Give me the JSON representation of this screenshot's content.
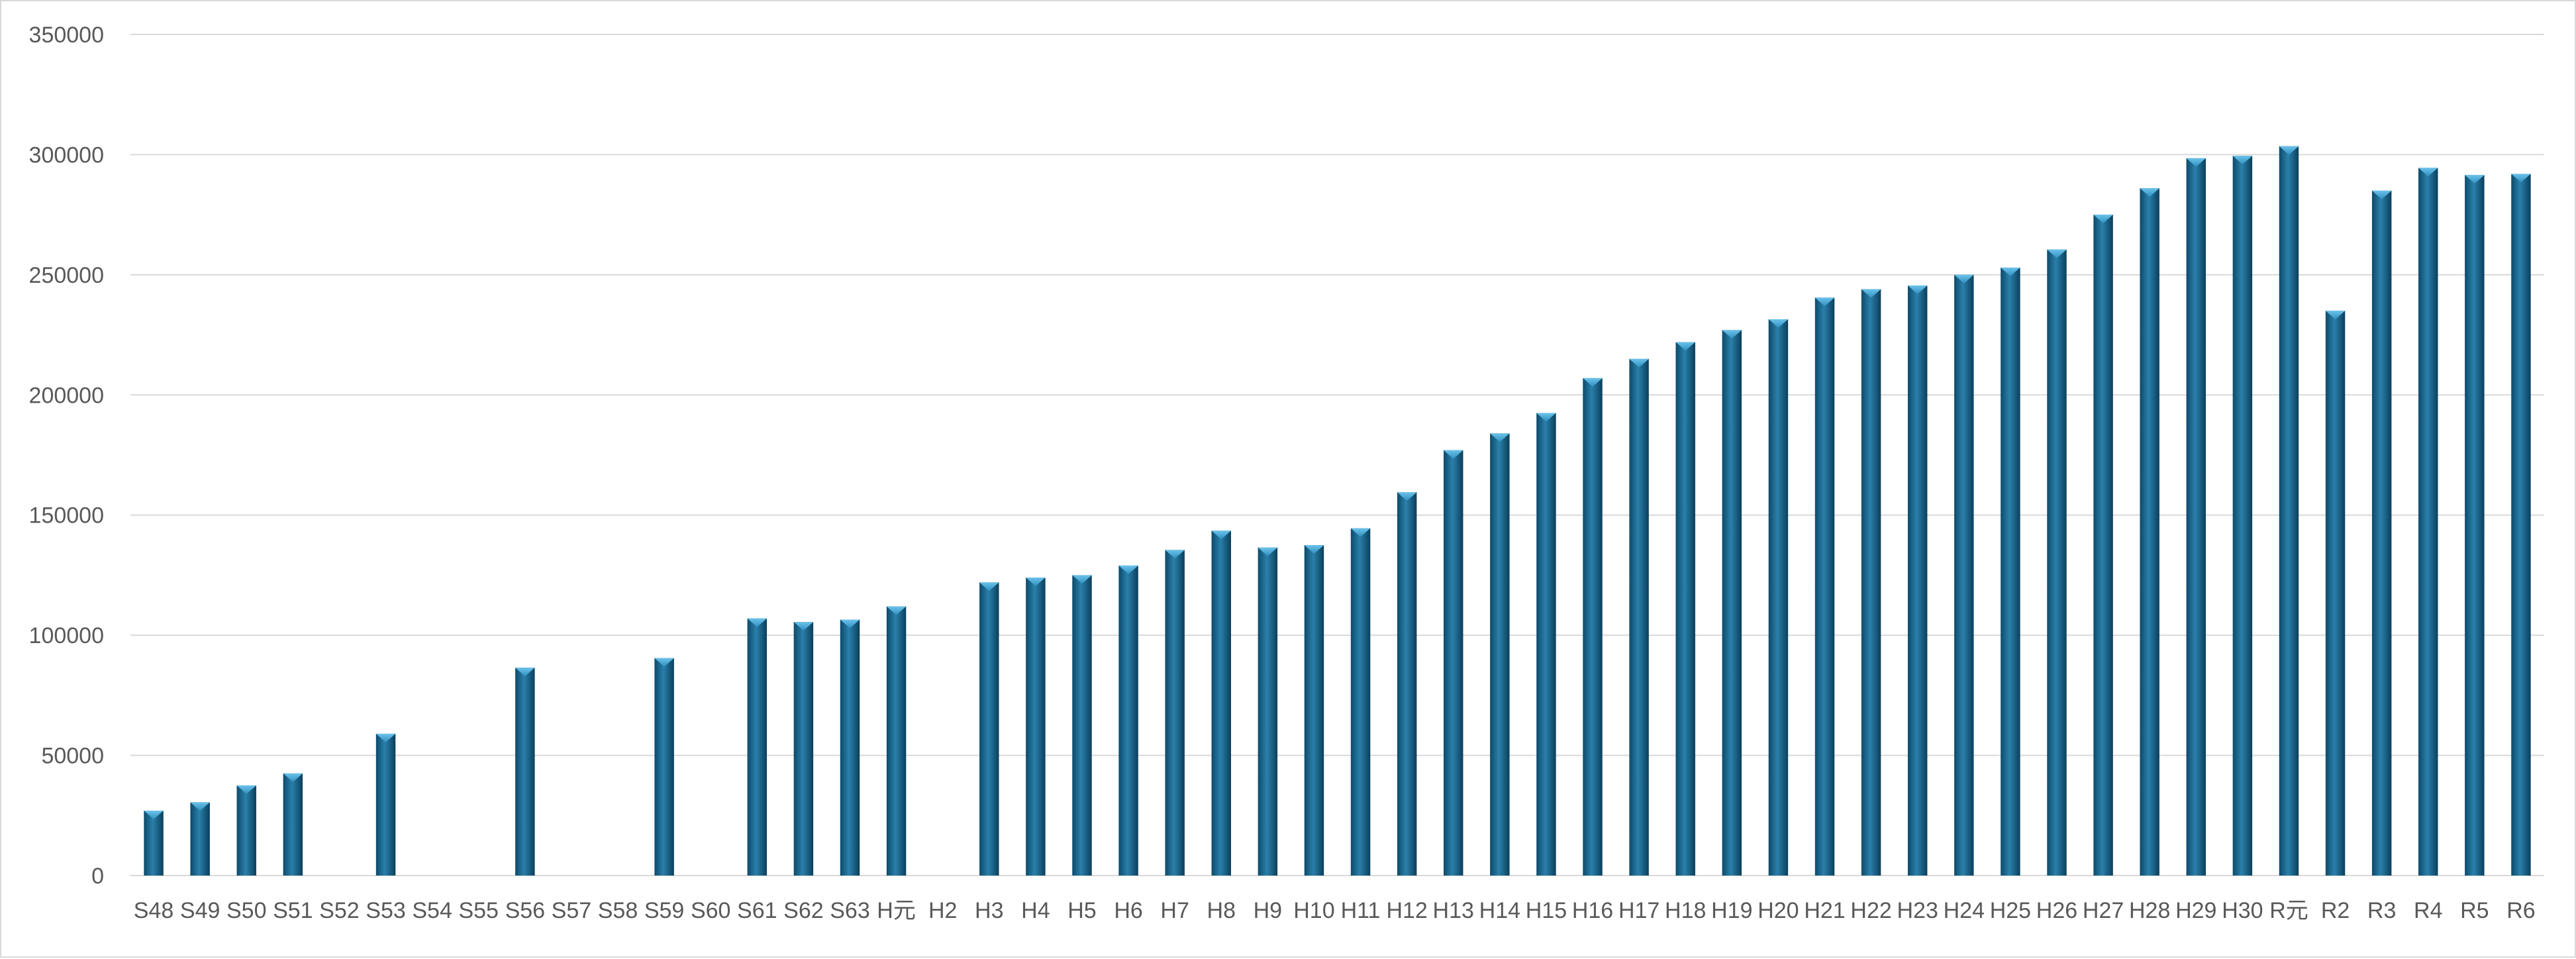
{
  "chart_data": {
    "type": "bar",
    "title": "",
    "xlabel": "",
    "ylabel": "",
    "ylim": [
      0,
      350000
    ],
    "yticks": [
      0,
      50000,
      100000,
      150000,
      200000,
      250000,
      300000,
      350000
    ],
    "ytick_labels": [
      "0",
      "50000",
      "100000",
      "150000",
      "200000",
      "250000",
      "300000",
      "350000"
    ],
    "grid": true,
    "legend": "none",
    "bar_color": "#1f6e95",
    "categories": [
      "S48",
      "S49",
      "S50",
      "S51",
      "S52",
      "S53",
      "S54",
      "S55",
      "S56",
      "S57",
      "S58",
      "S59",
      "S60",
      "S61",
      "S62",
      "S63",
      "H元",
      "H2",
      "H3",
      "H4",
      "H5",
      "H6",
      "H7",
      "H8",
      "H9",
      "H10",
      "H11",
      "H12",
      "H13",
      "H14",
      "H15",
      "H16",
      "H17",
      "H18",
      "H19",
      "H20",
      "H21",
      "H22",
      "H23",
      "H24",
      "H25",
      "H26",
      "H27",
      "H28",
      "H29",
      "H30",
      "R元",
      "R2",
      "R3",
      "R4",
      "R5",
      "R6"
    ],
    "values": [
      27000,
      30500,
      37500,
      42500,
      null,
      59000,
      null,
      null,
      86500,
      null,
      null,
      90500,
      null,
      107000,
      105500,
      106500,
      112000,
      null,
      122000,
      124000,
      125000,
      129000,
      135500,
      143500,
      136500,
      137500,
      144500,
      159500,
      177000,
      184000,
      192500,
      207000,
      215000,
      222000,
      227000,
      231500,
      240500,
      244000,
      245500,
      250000,
      253000,
      260500,
      275000,
      286000,
      298500,
      299500,
      303500,
      235000,
      285000,
      294500,
      291500,
      292000
    ]
  }
}
